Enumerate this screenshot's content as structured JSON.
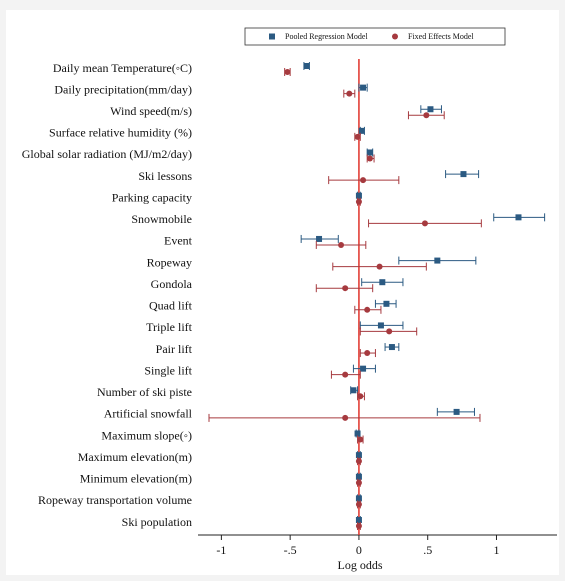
{
  "chart_data": {
    "type": "coefficient",
    "x_label": "Log odds",
    "categories": [
      "Daily mean Temperature(◦C)",
      "Daily precipitation(mm/day)",
      "Wind speed(m/s)",
      "Surface relative humidity (%)",
      "Global solar radiation (MJ/m2/day)",
      "Ski lessons",
      "Parking capacity",
      "Snowmobile",
      "Event",
      "Ropeway",
      "Gondola",
      "Quad lift",
      "Triple lift",
      "Pair lift",
      "Single lift",
      "Number of ski piste",
      "Artificial snowfall",
      "Maximum slope(◦)",
      "Maximum elevation(m)",
      "Minimum elevation(m)",
      "Ropeway transportation volume",
      "Ski population"
    ],
    "series": [
      {
        "name": "Pooled Regression Model",
        "color": "#2b5a82",
        "marker": "square",
        "values": [
          -0.38,
          0.03,
          0.52,
          0.02,
          0.08,
          0.76,
          0,
          1.16,
          -0.29,
          0.57,
          0.17,
          0.2,
          0.16,
          0.24,
          0.03,
          -0.04,
          0.71,
          -0.01,
          0,
          0,
          0,
          0
        ],
        "lower": [
          -0.4,
          0,
          0.45,
          0.01,
          0.06,
          0.63,
          -0.01,
          0.98,
          -0.42,
          0.29,
          0.02,
          0.12,
          0.01,
          0.19,
          -0.04,
          -0.06,
          0.57,
          -0.02,
          -0.01,
          -0.01,
          -0.01,
          -0.01
        ],
        "upper": [
          -0.36,
          0.06,
          0.6,
          0.04,
          0.1,
          0.87,
          0.01,
          1.35,
          -0.15,
          0.85,
          0.32,
          0.27,
          0.32,
          0.29,
          0.12,
          -0.01,
          0.84,
          0,
          0.01,
          0.01,
          0.01,
          0.01
        ]
      },
      {
        "name": "Fixed Effects Model",
        "color": "#a63a3f",
        "marker": "circle",
        "values": [
          -0.52,
          -0.07,
          0.49,
          -0.01,
          0.08,
          0.03,
          0,
          0.48,
          -0.13,
          0.15,
          -0.1,
          0.06,
          0.22,
          0.06,
          -0.1,
          0.01,
          -0.1,
          0.01,
          0,
          0,
          0,
          0
        ],
        "lower": [
          -0.54,
          -0.11,
          0.36,
          -0.03,
          0.06,
          -0.22,
          -0.01,
          0.07,
          -0.31,
          -0.19,
          -0.31,
          -0.03,
          0.01,
          0.01,
          -0.2,
          -0.01,
          -1.09,
          -0.01,
          -0.01,
          -0.01,
          -0.01,
          -0.01
        ],
        "upper": [
          -0.5,
          -0.03,
          0.62,
          0.01,
          0.11,
          0.29,
          0.01,
          0.89,
          0.05,
          0.49,
          0.1,
          0.16,
          0.42,
          0.12,
          0.01,
          0.04,
          0.88,
          0.03,
          0.01,
          0.01,
          0.01,
          0.01
        ]
      }
    ],
    "xlim": [
      -1.17,
      1.44
    ],
    "xticks": [
      -1,
      {
        "value": -0.5,
        "label": "-.5"
      },
      0,
      {
        "value": 0.5,
        "label": ".5"
      },
      1
    ],
    "reference_line": 0,
    "reference_color": "#e0322a"
  }
}
